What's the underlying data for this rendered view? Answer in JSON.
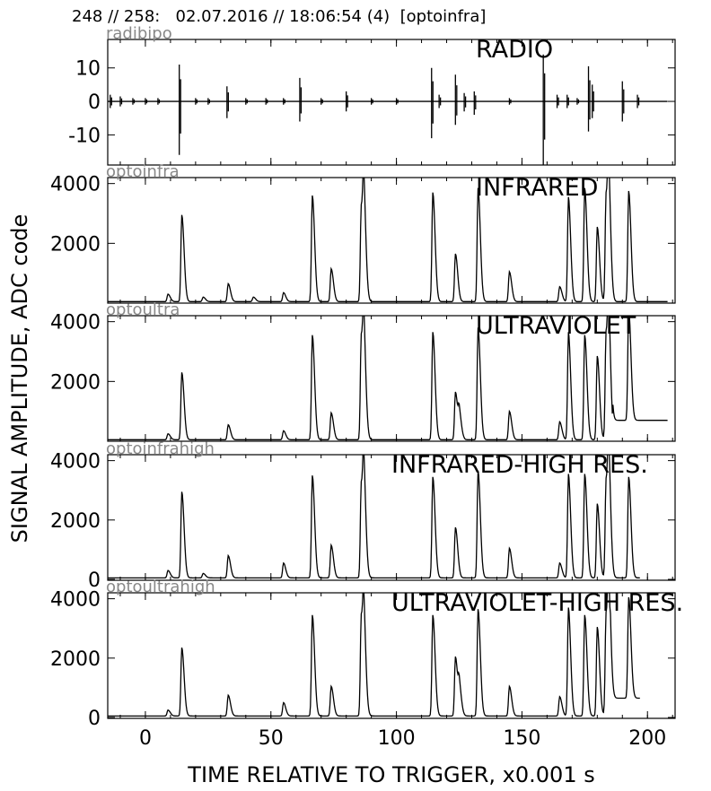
{
  "header": "248 // 258:   02.07.2016 // 18:06:54 (4)  [optoinfra]",
  "ylabel": "SIGNAL AMPLITUDE,  ADC code",
  "xlabel": "TIME RELATIVE TO TRIGGER,   x0.001 s",
  "colors": {
    "trace": "#000000",
    "channel_label": "#888888",
    "frame": "#000000"
  },
  "chart_data": [
    {
      "type": "line",
      "channel": "radibipo",
      "title": "RADIO",
      "ylim": [
        -19,
        18.5
      ],
      "xlim": [
        -15,
        211
      ],
      "yticks": [
        10,
        0,
        -10
      ],
      "ytick_labels": [
        "10",
        "0",
        "-10"
      ],
      "baseline": 0,
      "sampled_to": 208,
      "spikes": [
        [
          -14,
          -2,
          2
        ],
        [
          -10,
          -1.5,
          1.5
        ],
        [
          -5,
          -1,
          1
        ],
        [
          0,
          -1,
          1
        ],
        [
          5,
          -1,
          1
        ],
        [
          13.5,
          -16,
          11
        ],
        [
          20,
          -1,
          1
        ],
        [
          25,
          -1,
          1
        ],
        [
          32.5,
          -5,
          4.5
        ],
        [
          40,
          -1,
          1
        ],
        [
          48,
          -1,
          1
        ],
        [
          55,
          -1,
          1
        ],
        [
          61.5,
          -6,
          7
        ],
        [
          70,
          -1,
          1
        ],
        [
          80,
          -3,
          3
        ],
        [
          90,
          -1,
          1
        ],
        [
          100,
          -1,
          1
        ],
        [
          114,
          -11,
          10
        ],
        [
          117,
          -2,
          2
        ],
        [
          123.5,
          -7,
          8
        ],
        [
          127,
          -3,
          2.5
        ],
        [
          131,
          -4,
          3
        ],
        [
          145,
          -1,
          1
        ],
        [
          158.5,
          -19,
          14
        ],
        [
          164,
          -2,
          2
        ],
        [
          168,
          -2,
          2
        ],
        [
          172,
          -1,
          1
        ],
        [
          176.5,
          -9,
          10.5
        ],
        [
          178,
          -5,
          5
        ],
        [
          190,
          -6,
          6
        ],
        [
          196,
          -2,
          2
        ]
      ]
    },
    {
      "type": "line",
      "channel": "optoinfra",
      "title": "INFRARED",
      "ylim": [
        0,
        4200
      ],
      "xlim": [
        -15,
        211
      ],
      "yticks": [
        4000,
        2000
      ],
      "ytick_labels": [
        "4000",
        "2000"
      ],
      "baseline": 50,
      "sampled_to": 208,
      "peaks": [
        [
          9,
          250
        ],
        [
          14.5,
          2900
        ],
        [
          23,
          150
        ],
        [
          33,
          600
        ],
        [
          43,
          150
        ],
        [
          55,
          300
        ],
        [
          66.5,
          3550
        ],
        [
          74,
          1100
        ],
        [
          86,
          3200
        ],
        [
          87,
          2800
        ],
        [
          114.5,
          3650
        ],
        [
          123.5,
          1600
        ],
        [
          132.5,
          3800
        ],
        [
          145,
          1000
        ],
        [
          165,
          500
        ],
        [
          168.5,
          3500
        ],
        [
          175,
          3800
        ],
        [
          180,
          2500
        ],
        [
          183.5,
          3600
        ],
        [
          184.5,
          3200
        ],
        [
          192.5,
          3700
        ]
      ]
    },
    {
      "type": "line",
      "channel": "optoultra",
      "title": "ULTRAVIOLET",
      "ylim": [
        0,
        4200
      ],
      "xlim": [
        -15,
        211
      ],
      "yticks": [
        4000,
        2000
      ],
      "ytick_labels": [
        "4000",
        "2000"
      ],
      "baseline": 50,
      "sampled_to": 208,
      "peaks": [
        [
          9,
          200
        ],
        [
          14.5,
          2250
        ],
        [
          33,
          500
        ],
        [
          55,
          300
        ],
        [
          66.5,
          3500
        ],
        [
          74,
          900
        ],
        [
          86,
          3500
        ],
        [
          87,
          2700
        ],
        [
          114.5,
          3600
        ],
        [
          123.5,
          1600
        ],
        [
          125,
          800
        ],
        [
          132.5,
          3750
        ],
        [
          145,
          950
        ],
        [
          165,
          600
        ],
        [
          168.5,
          3600
        ],
        [
          175,
          3500
        ],
        [
          180,
          2800
        ],
        [
          183.5,
          3600
        ],
        [
          184.5,
          3200
        ],
        [
          192.5,
          3700
        ]
      ]
    },
    {
      "type": "line",
      "channel": "optoinfrahigh",
      "title": "INFRARED-HIGH RES.",
      "ylim": [
        -30,
        4200
      ],
      "xlim": [
        -15,
        211
      ],
      "yticks": [
        4000,
        2000,
        0
      ],
      "ytick_labels": [
        "4000",
        "2000",
        "0"
      ],
      "baseline": 50,
      "sampled_to": 197,
      "peaks": [
        [
          9,
          250
        ],
        [
          14.5,
          2900
        ],
        [
          23,
          150
        ],
        [
          33,
          750
        ],
        [
          55,
          500
        ],
        [
          66.5,
          3450
        ],
        [
          74,
          1100
        ],
        [
          86,
          3200
        ],
        [
          87,
          2700
        ],
        [
          114.5,
          3400
        ],
        [
          123.5,
          1700
        ],
        [
          132.5,
          3600
        ],
        [
          145,
          1000
        ],
        [
          165,
          500
        ],
        [
          168.5,
          3500
        ],
        [
          175,
          3500
        ],
        [
          180,
          2500
        ],
        [
          183.5,
          3300
        ],
        [
          184.5,
          3200
        ],
        [
          192.5,
          3400
        ]
      ]
    },
    {
      "type": "line",
      "channel": "optoultrahigh",
      "title": "ULTRAVIOLET-HIGH RES.",
      "ylim": [
        -30,
        4200
      ],
      "xlim": [
        -15,
        211
      ],
      "yticks": [
        4000,
        2000,
        0
      ],
      "ytick_labels": [
        "4000",
        "2000",
        "0"
      ],
      "xticks": [
        0,
        50,
        100,
        150,
        200
      ],
      "xtick_labels": [
        "0",
        "50",
        "100",
        "150",
        "200"
      ],
      "baseline": 50,
      "sampled_to": 197,
      "peaks": [
        [
          9,
          200
        ],
        [
          14.5,
          2300
        ],
        [
          33,
          700
        ],
        [
          55,
          450
        ],
        [
          66.5,
          3400
        ],
        [
          74,
          1000
        ],
        [
          86,
          3400
        ],
        [
          87,
          2500
        ],
        [
          114.5,
          3400
        ],
        [
          123.5,
          2000
        ],
        [
          125,
          900
        ],
        [
          132.5,
          3600
        ],
        [
          145,
          1000
        ],
        [
          165,
          650
        ],
        [
          168.5,
          3650
        ],
        [
          175,
          3400
        ],
        [
          180,
          3000
        ],
        [
          183.5,
          3450
        ],
        [
          184.5,
          3300
        ],
        [
          192.5,
          3400
        ]
      ]
    }
  ]
}
